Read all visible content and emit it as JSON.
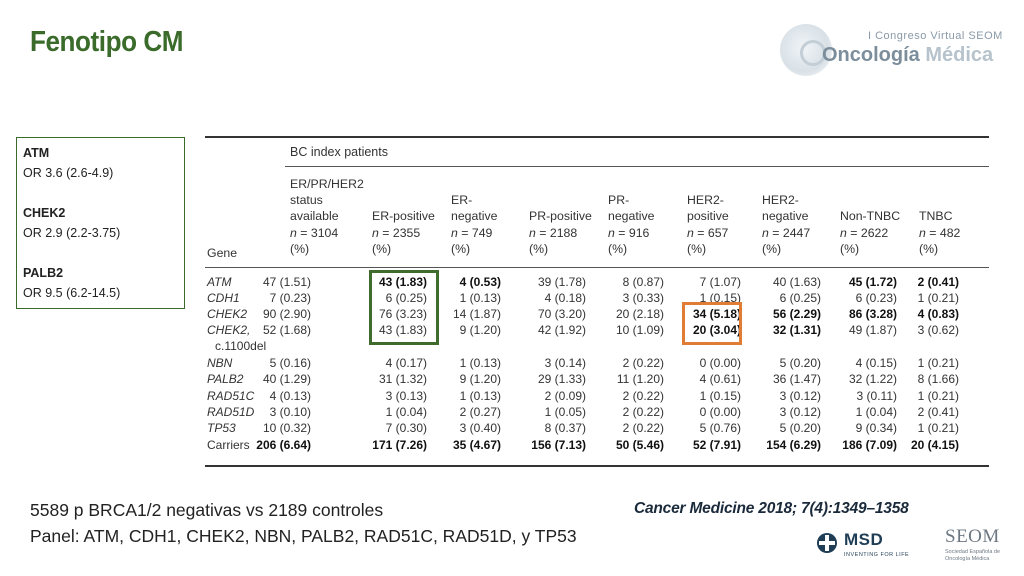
{
  "title": "Fenotipo CM",
  "logo": {
    "congreso": "I Congreso Virtual SEOM",
    "onco": "Oncología",
    "medica": "Médica"
  },
  "or_box": [
    {
      "gene": "ATM",
      "or": "OR 3.6 (2.6-4.9)"
    },
    {
      "gene": "CHEK2",
      "or": "OR 2.9 (2.2-3.75)"
    },
    {
      "gene": "PALB2",
      "or": "OR 9.5 (6.2-14.5)"
    }
  ],
  "table": {
    "super_header": "BC index patients",
    "gene_header": "Gene",
    "columns": [
      {
        "l1": "ER/PR/HER2",
        "l2": "status",
        "l3": "available",
        "n": "n = 3104",
        "unit": "(%)"
      },
      {
        "l1": "",
        "l2": "",
        "l3": "ER-positive",
        "n": "n = 2355",
        "unit": "(%)"
      },
      {
        "l1": "",
        "l2": "ER-",
        "l3": "negative",
        "n": "n = 749",
        "unit": "(%)"
      },
      {
        "l1": "",
        "l2": "",
        "l3": "PR-positive",
        "n": "n = 2188",
        "unit": "(%)"
      },
      {
        "l1": "",
        "l2": "PR-",
        "l3": "negative",
        "n": "n = 916",
        "unit": "(%)"
      },
      {
        "l1": "",
        "l2": "HER2-",
        "l3": "positive",
        "n": "n = 657",
        "unit": "(%)"
      },
      {
        "l1": "",
        "l2": "HER2-",
        "l3": "negative",
        "n": "n = 2447",
        "unit": "(%)"
      },
      {
        "l1": "",
        "l2": "",
        "l3": "Non-TNBC",
        "n": "n = 2622",
        "unit": "(%)"
      },
      {
        "l1": "",
        "l2": "",
        "l3": "TNBC",
        "n": "n = 482",
        "unit": "(%)"
      }
    ],
    "rows": [
      {
        "gene": "ATM",
        "sub": "",
        "italic": true,
        "cells": [
          "47 (1.51)",
          "43 (1.83)",
          "4 (0.53)",
          "39 (1.78)",
          "8 (0.87)",
          "7 (1.07)",
          "40 (1.63)",
          "45 (1.72)",
          "2 (0.41)"
        ],
        "bold": [
          1,
          2,
          7,
          8
        ]
      },
      {
        "gene": "CDH1",
        "sub": "",
        "italic": true,
        "cells": [
          "7 (0.23)",
          "6 (0.25)",
          "1 (0.13)",
          "4 (0.18)",
          "3 (0.33)",
          "1 (0.15)",
          "6 (0.25)",
          "6 (0.23)",
          "1 (0.21)"
        ],
        "bold": []
      },
      {
        "gene": "CHEK2",
        "sub": "",
        "italic": true,
        "cells": [
          "90 (2.90)",
          "76 (3.23)",
          "14 (1.87)",
          "70 (3.20)",
          "20 (2.18)",
          "34 (5.18)",
          "56 (2.29)",
          "86 (3.28)",
          "4 (0.83)"
        ],
        "bold": [
          5,
          6,
          7,
          8
        ]
      },
      {
        "gene": "CHEK2,",
        "sub": "c.1100del",
        "italic": true,
        "cells": [
          "52 (1.68)",
          "43 (1.83)",
          "9 (1.20)",
          "42 (1.92)",
          "10 (1.09)",
          "20 (3.04)",
          "32 (1.31)",
          "49 (1.87)",
          "3 (0.62)"
        ],
        "bold": [
          5,
          6
        ]
      },
      {
        "gene": "NBN",
        "sub": "",
        "italic": true,
        "cells": [
          "5 (0.16)",
          "4 (0.17)",
          "1 (0.13)",
          "3 (0.14)",
          "2 (0.22)",
          "0 (0.00)",
          "5 (0.20)",
          "4 (0.15)",
          "1 (0.21)"
        ],
        "bold": []
      },
      {
        "gene": "PALB2",
        "sub": "",
        "italic": true,
        "cells": [
          "40 (1.29)",
          "31 (1.32)",
          "9 (1.20)",
          "29 (1.33)",
          "11 (1.20)",
          "4 (0.61)",
          "36 (1.47)",
          "32 (1.22)",
          "8 (1.66)"
        ],
        "bold": []
      },
      {
        "gene": "RAD51C",
        "sub": "",
        "italic": true,
        "cells": [
          "4 (0.13)",
          "3 (0.13)",
          "1 (0.13)",
          "2 (0.09)",
          "2 (0.22)",
          "1 (0.15)",
          "3 (0.12)",
          "3 (0.11)",
          "1 (0.21)"
        ],
        "bold": []
      },
      {
        "gene": "RAD51D",
        "sub": "",
        "italic": true,
        "cells": [
          "3 (0.10)",
          "1 (0.04)",
          "2 (0.27)",
          "1 (0.05)",
          "2 (0.22)",
          "0 (0.00)",
          "3 (0.12)",
          "1 (0.04)",
          "2 (0.41)"
        ],
        "bold": []
      },
      {
        "gene": "TP53",
        "sub": "",
        "italic": true,
        "cells": [
          "10 (0.32)",
          "7 (0.30)",
          "3 (0.40)",
          "8 (0.37)",
          "2 (0.22)",
          "5 (0.76)",
          "5 (0.20)",
          "9 (0.34)",
          "1 (0.21)"
        ],
        "bold": []
      },
      {
        "gene": "Carriers",
        "sub": "",
        "italic": false,
        "cells": [
          "206 (6.64)",
          "171 (7.26)",
          "35 (4.67)",
          "156 (7.13)",
          "50 (5.46)",
          "52 (7.91)",
          "154 (6.29)",
          "186 (7.09)",
          "20 (4.15)"
        ],
        "bold": [
          0,
          1,
          2,
          3,
          4,
          5,
          6,
          7,
          8
        ]
      }
    ]
  },
  "notes": [
    "5589 p  BRCA1/2 negativas vs 2189 controles",
    "Panel: ATM, CDH1, CHEK2, NBN, PALB2, RAD51C, RAD51D, y TP53"
  ],
  "citation": "Cancer Medicine 2018; 7(4):1349–1358",
  "msd": {
    "word": "MSD",
    "tag": "INVENTING FOR LIFE"
  },
  "seom": {
    "word": "SEOM",
    "sub": "Sociedad Española de Oncología Médica"
  }
}
